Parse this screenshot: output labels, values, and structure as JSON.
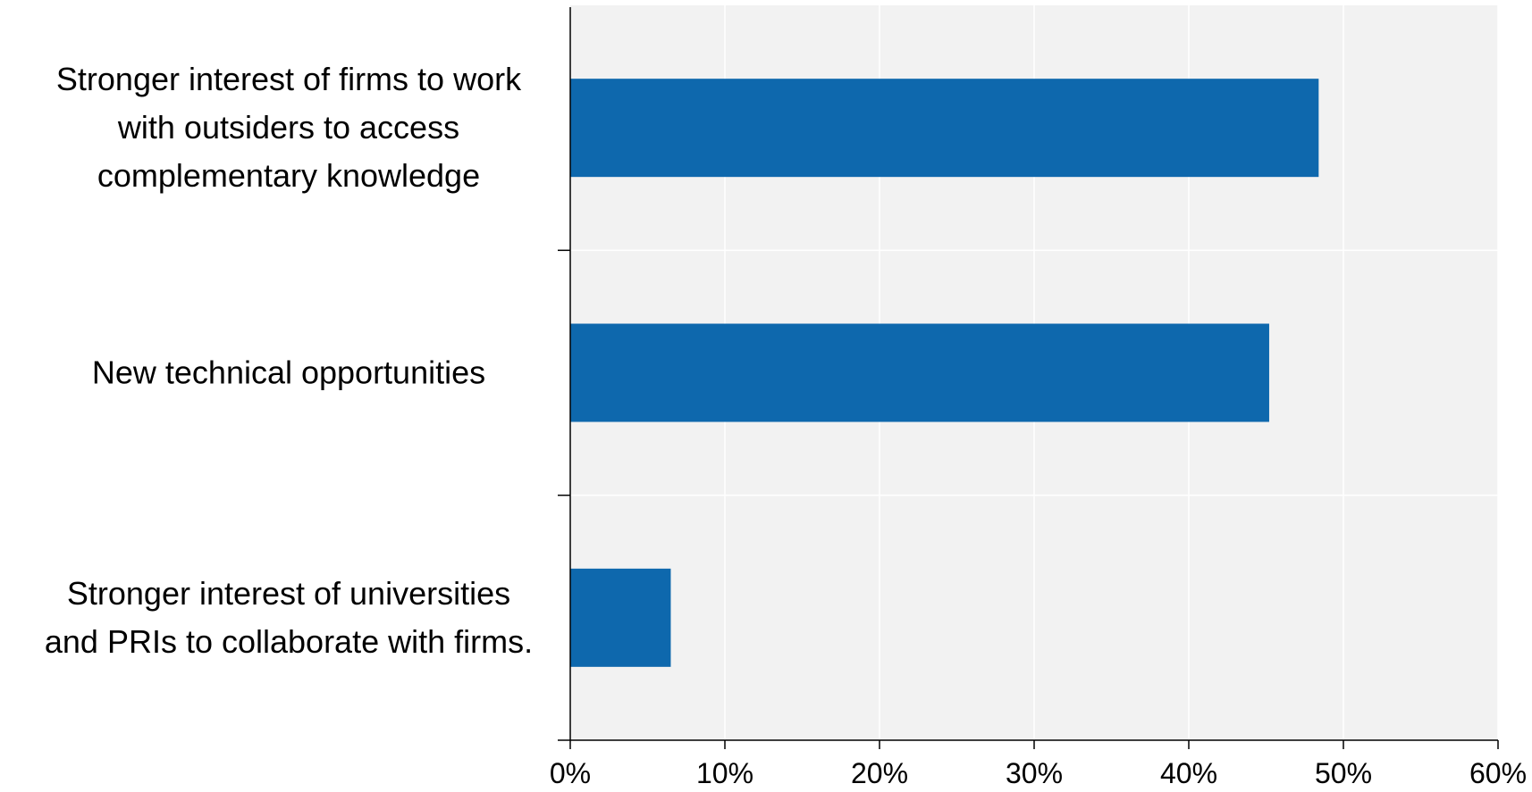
{
  "chart_data": {
    "type": "bar",
    "orientation": "horizontal",
    "categories": [
      "Stronger interest of firms to work with outsiders to access complementary knowledge",
      "New technical opportunities",
      "Stronger interest of universities and PRIs to collaborate with firms."
    ],
    "category_lines": [
      [
        "Stronger interest of firms to work",
        "with outsiders to access",
        "complementary knowledge"
      ],
      [
        "New technical opportunities"
      ],
      [
        "Stronger interest of universities",
        "and PRIs to collaborate with firms."
      ]
    ],
    "values": [
      48.4,
      45.2,
      6.5
    ],
    "xlim": [
      0,
      60
    ],
    "x_ticks": [
      0,
      10,
      20,
      30,
      40,
      50,
      60
    ],
    "x_tick_labels": [
      "0%",
      "10%",
      "20%",
      "30%",
      "40%",
      "50%",
      "60%"
    ],
    "grid": "vertical",
    "legend": "none",
    "colors": {
      "bar": "#0e68ad",
      "plot_background": "#f2f2f2",
      "gridline": "#ffffff",
      "axis": "#000000"
    }
  }
}
